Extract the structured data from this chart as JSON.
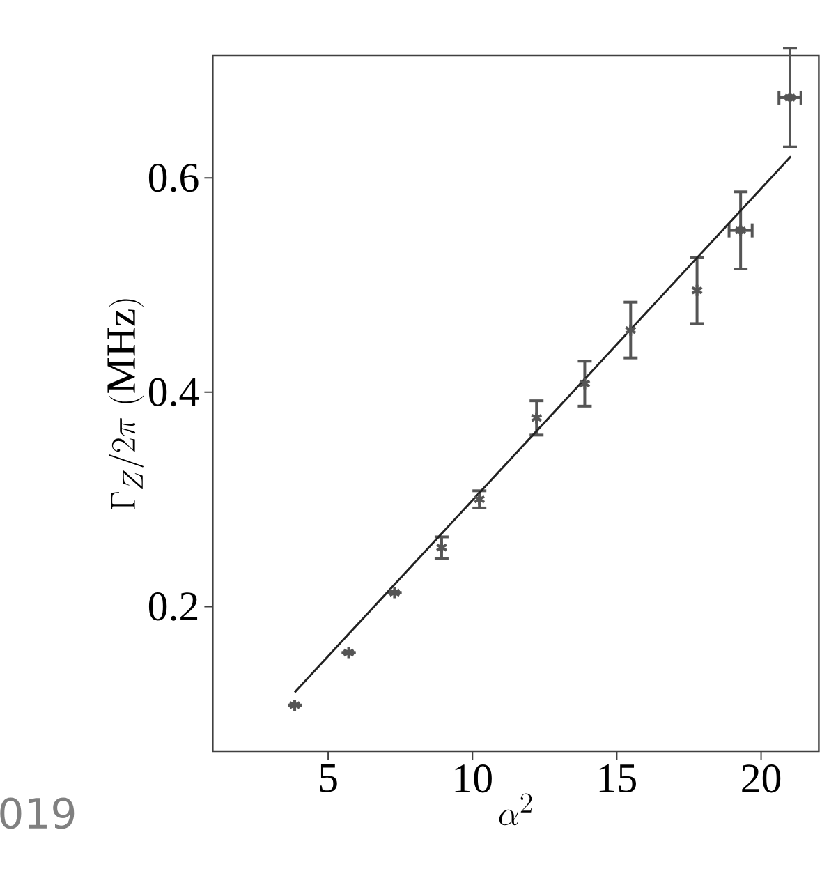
{
  "chart_data": {
    "type": "scatter",
    "xlabel": "\\alpha^2",
    "ylabel": "\\Gamma_Z/2\\pi\\ (\\mathrm{MHz})",
    "x": [
      3.84,
      5.71,
      7.3,
      8.93,
      10.24,
      12.22,
      13.89,
      15.48,
      17.78,
      19.29,
      21.0
    ],
    "series": [
      {
        "color": "#555555",
        "marker": "cross",
        "values": [
          0.108,
          0.157,
          0.213,
          0.255,
          0.3,
          0.376,
          0.408,
          0.458,
          0.495,
          0.551,
          0.675
        ],
        "errors": [
          null,
          null,
          null,
          0.01,
          0.008,
          0.016,
          0.021,
          0.026,
          0.031,
          0.036,
          0.046
        ],
        "xerrors": [
          null,
          null,
          null,
          null,
          null,
          null,
          null,
          null,
          null,
          0.4,
          0.38
        ]
      },
      {
        "type": "line",
        "color": "#222222",
        "x": [
          3.84,
          21.03
        ],
        "values": [
          0.12,
          0.62
        ]
      }
    ],
    "xlim": [
      1,
      22
    ],
    "ylim": [
      0.065,
      0.714
    ],
    "xticks": [
      5,
      10,
      15,
      20
    ],
    "yticks": [
      {
        "value": 0.2,
        "label": "0.2"
      },
      {
        "value": 0.4,
        "label": "0.4"
      },
      {
        "value": 0.6,
        "label": "0.6"
      }
    ],
    "annotations": [
      "019"
    ]
  }
}
